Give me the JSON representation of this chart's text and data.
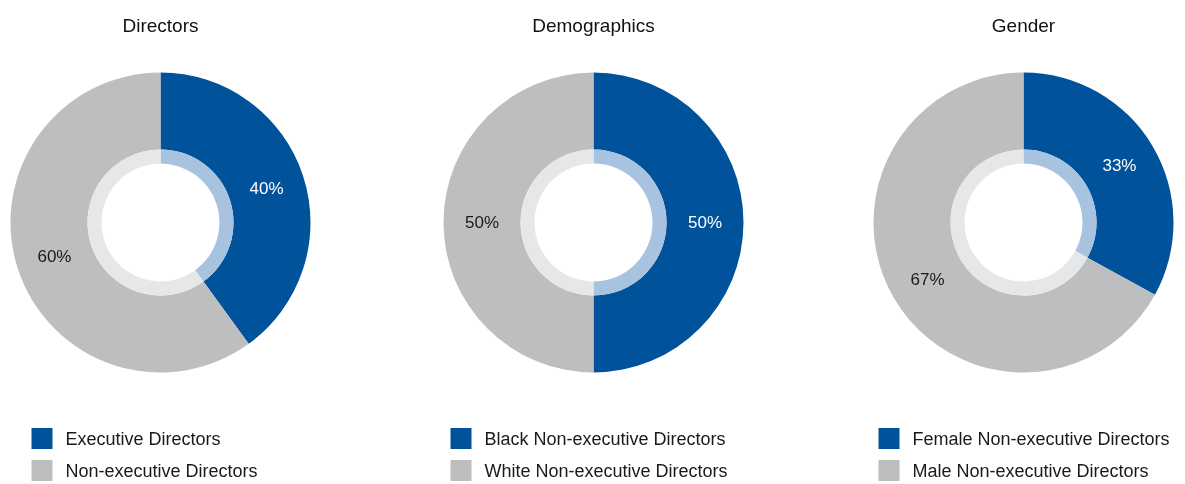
{
  "chart_data": [
    {
      "type": "donut",
      "title": "Directors",
      "categories": [
        "Executive Directors",
        "Non-executive Directors"
      ],
      "series": [
        {
          "values": [
            40,
            60
          ],
          "colors": [
            "#00529b",
            "#bcbec0"
          ],
          "value_labels": [
            "40%",
            "60%"
          ]
        },
        {
          "values": [
            40,
            60
          ],
          "colors": [
            "#a7c3df",
            "#e6e7e8"
          ]
        }
      ],
      "legend": "bottom"
    },
    {
      "type": "donut",
      "title": "Demographics",
      "categories": [
        "Black Non-executive Directors",
        "White Non-executive Directors"
      ],
      "series": [
        {
          "values": [
            50,
            50
          ],
          "colors": [
            "#00529b",
            "#bcbec0"
          ],
          "value_labels": [
            "50%",
            "50%"
          ]
        },
        {
          "values": [
            50,
            50
          ],
          "colors": [
            "#a7c3df",
            "#e6e7e8"
          ]
        }
      ],
      "legend": "bottom"
    },
    {
      "type": "donut",
      "title": "Gender",
      "categories": [
        "Female Non-executive Directors",
        "Male Non-executive Directors"
      ],
      "series": [
        {
          "values": [
            33,
            67
          ],
          "colors": [
            "#00529b",
            "#bcbec0"
          ],
          "value_labels": [
            "33%",
            "67%"
          ]
        },
        {
          "values": [
            33,
            67
          ],
          "colors": [
            "#a7c3df",
            "#e6e7e8"
          ]
        }
      ],
      "legend": "bottom"
    }
  ]
}
